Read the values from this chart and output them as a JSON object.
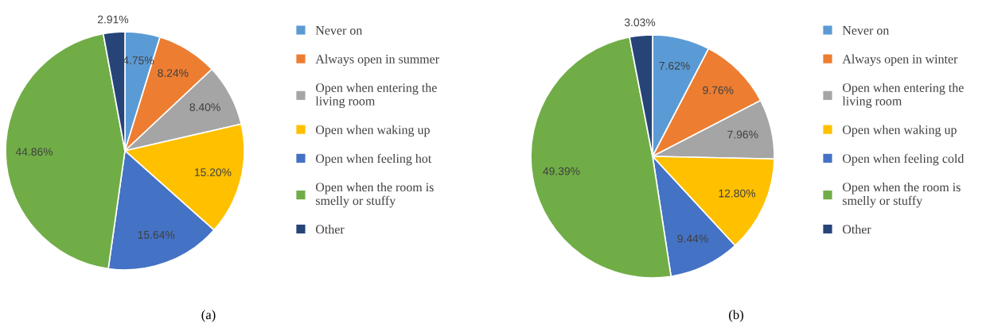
{
  "chart_data": [
    {
      "type": "pie",
      "title": "(a)",
      "legend": "right",
      "data_labels": true,
      "categories": [
        "Never on",
        "Always open in summer",
        "Open when entering the\nliving room",
        "Open when waking up",
        "Open when feeling hot",
        "Open when the room is\nsmelly or stuffy",
        "Other"
      ],
      "values": [
        4.75,
        8.24,
        8.4,
        15.2,
        15.64,
        44.86,
        2.91
      ],
      "value_labels": [
        "4.75%",
        "8.24%",
        "8.40%",
        "15.20%",
        "15.64%",
        "44.86%",
        "2.91%"
      ],
      "colors": [
        "#5b9bd5",
        "#ed7d31",
        "#a5a5a5",
        "#ffc000",
        "#4472c4",
        "#70ad47",
        "#264478"
      ]
    },
    {
      "type": "pie",
      "title": "(b)",
      "legend": "right",
      "data_labels": true,
      "categories": [
        "Never on",
        "Always open in winter",
        "Open when entering the\nliving room",
        "Open when waking up",
        "Open when feeling cold",
        "Open when the room is\nsmelly or stuffy",
        "Other"
      ],
      "values": [
        7.62,
        9.76,
        7.96,
        12.8,
        9.44,
        49.39,
        3.03
      ],
      "value_labels": [
        "7.62%",
        "9.76%",
        "7.96%",
        "12.80%",
        "9.44%",
        "49.39%",
        "3.03%"
      ],
      "colors": [
        "#5b9bd5",
        "#ed7d31",
        "#a5a5a5",
        "#ffc000",
        "#4472c4",
        "#70ad47",
        "#264478"
      ]
    }
  ]
}
